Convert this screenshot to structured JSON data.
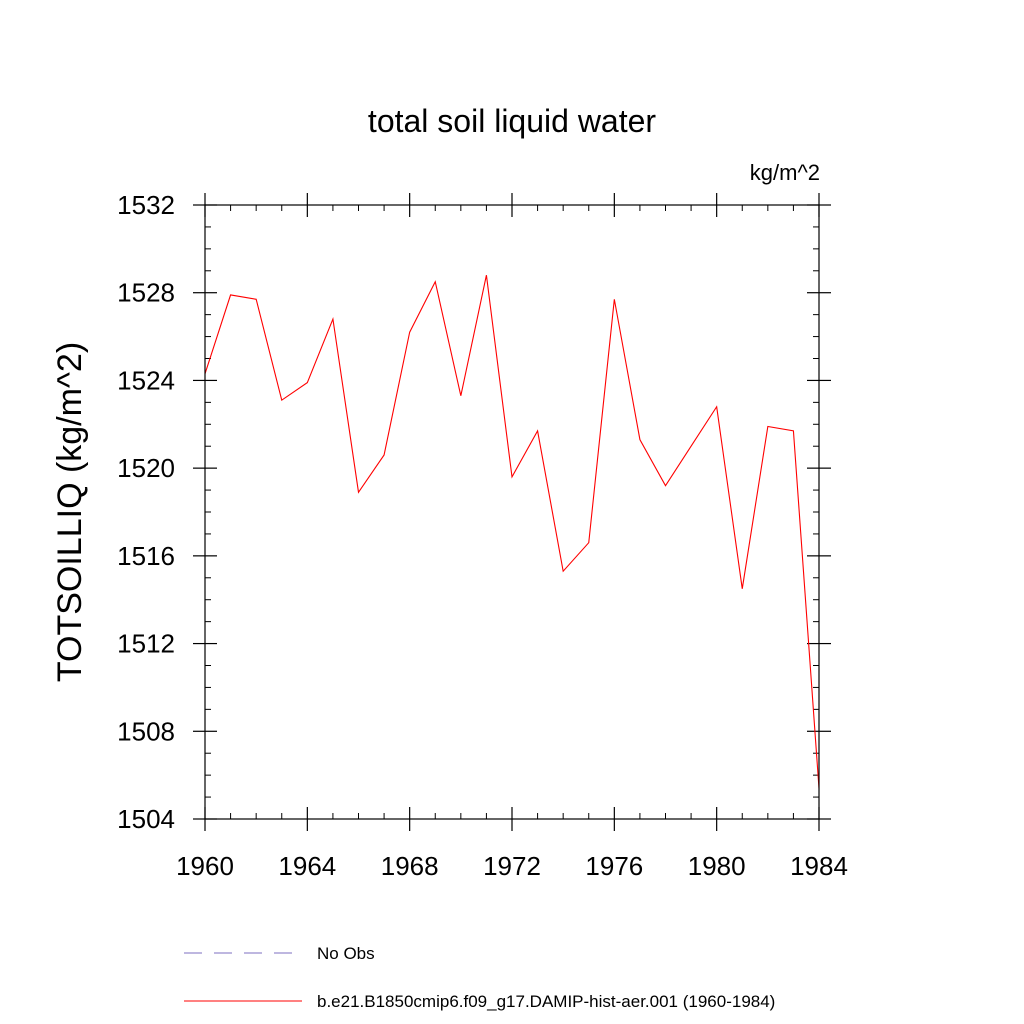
{
  "chart_data": {
    "type": "line",
    "title": "total soil liquid water",
    "units_label": "kg/m^2",
    "ylabel": "TOTSOILLIQ  (kg/m^2)",
    "xlabel": "",
    "xlim": [
      1960,
      1984
    ],
    "ylim": [
      1504,
      1532
    ],
    "xticks": [
      1960,
      1964,
      1968,
      1972,
      1976,
      1980,
      1984
    ],
    "yticks": [
      1504,
      1508,
      1512,
      1516,
      1520,
      1524,
      1528,
      1532
    ],
    "grid": false,
    "legend_position": "bottom",
    "series": [
      {
        "name": "b.e21.B1850cmip6.f09_g17.DAMIP-hist-aer.001 (1960-1984)",
        "color": "#ff0000",
        "style": "solid",
        "x": [
          1960,
          1961,
          1962,
          1963,
          1964,
          1965,
          1966,
          1967,
          1968,
          1969,
          1970,
          1971,
          1972,
          1973,
          1974,
          1975,
          1976,
          1977,
          1978,
          1979,
          1980,
          1981,
          1982,
          1983,
          1984
        ],
        "values": [
          1524.3,
          1527.9,
          1527.7,
          1523.1,
          1523.9,
          1526.8,
          1518.9,
          1520.6,
          1526.2,
          1528.5,
          1523.3,
          1528.8,
          1519.6,
          1521.7,
          1515.3,
          1516.6,
          1527.7,
          1521.3,
          1519.2,
          1521.0,
          1522.8,
          1514.5,
          1521.9,
          1521.7,
          1505.4
        ]
      },
      {
        "name": "No Obs",
        "color": "#7d6fc2",
        "style": "dashed",
        "x": [],
        "values": []
      }
    ]
  }
}
